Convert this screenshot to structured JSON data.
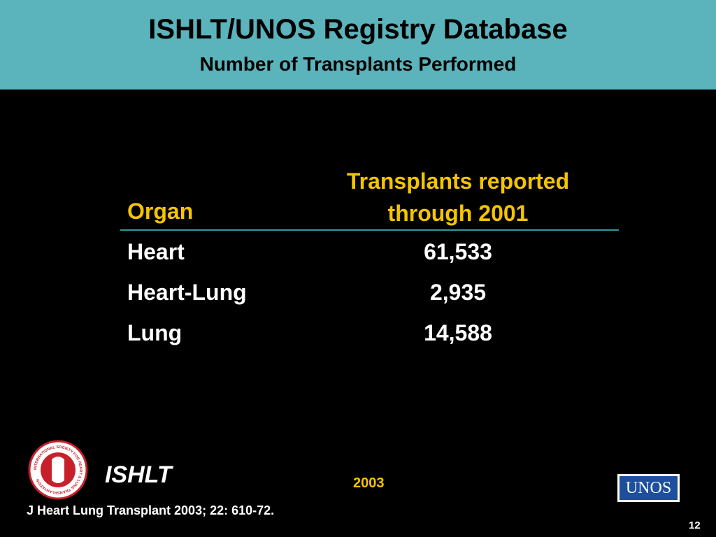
{
  "header": {
    "title": "ISHLT/UNOS Registry Database",
    "subtitle": "Number of Transplants Performed"
  },
  "table": {
    "headers": [
      "Organ",
      "Transplants reported through 2001"
    ],
    "rows": [
      [
        "Heart",
        "61,533"
      ],
      [
        "Heart-Lung",
        "2,935"
      ],
      [
        "Lung",
        "14,588"
      ]
    ]
  },
  "footer": {
    "logo_text": "INTERNATIONAL SOCIETY FOR HEART & LUNG TRANSPLANTATION",
    "society": "ISHLT",
    "year": "2003",
    "citation": "J Heart Lung Transplant 2003; 22: 610-72.",
    "partner_logo": "UNOS",
    "page": "12"
  }
}
